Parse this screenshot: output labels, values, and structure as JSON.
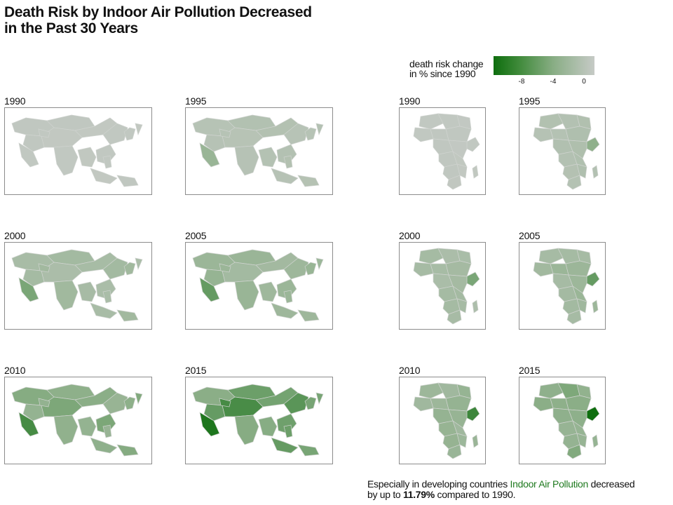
{
  "title": {
    "line1": "Death Risk by Indoor Air Pollution Decreased",
    "line2": "in the Past 30 Years"
  },
  "legend": {
    "title_line1": "death risk change",
    "title_line2": "in % since 1990",
    "ticks": [
      "-8",
      "-4",
      "0"
    ],
    "tick_values": [
      -8,
      -4,
      0
    ],
    "range": [
      -11.8,
      0.6
    ],
    "colors": {
      "low": "#0e6e0e",
      "mid": "#8aae86",
      "high": "#c6cac6"
    }
  },
  "asia_panels": [
    {
      "year": "1990",
      "tone": 0.05,
      "highlight": 0.05
    },
    {
      "year": "1995",
      "tone": 0.18,
      "highlight": 0.45
    },
    {
      "year": "2000",
      "tone": 0.32,
      "highlight": 0.65
    },
    {
      "year": "2005",
      "tone": 0.42,
      "highlight": 0.72
    },
    {
      "year": "2010",
      "tone": 0.55,
      "highlight": 0.82
    },
    {
      "year": "2015",
      "tone": 0.7,
      "highlight": 0.95
    }
  ],
  "africa_panels": [
    {
      "year": "1990",
      "tone": 0.05,
      "highlight": 0.05
    },
    {
      "year": "1995",
      "tone": 0.2,
      "highlight": 0.55
    },
    {
      "year": "2000",
      "tone": 0.3,
      "highlight": 0.65
    },
    {
      "year": "2005",
      "tone": 0.38,
      "highlight": 0.72
    },
    {
      "year": "2010",
      "tone": 0.45,
      "highlight": 0.85
    },
    {
      "year": "2015",
      "tone": 0.55,
      "highlight": 1.0
    }
  ],
  "caption": {
    "part1": "Especially in developing countries ",
    "highlight": "Indoor Air Pollution",
    "part2": " decreased",
    "line2_prefix": "by up to ",
    "value": "11.79%",
    "line2_suffix": " compared to 1990."
  }
}
